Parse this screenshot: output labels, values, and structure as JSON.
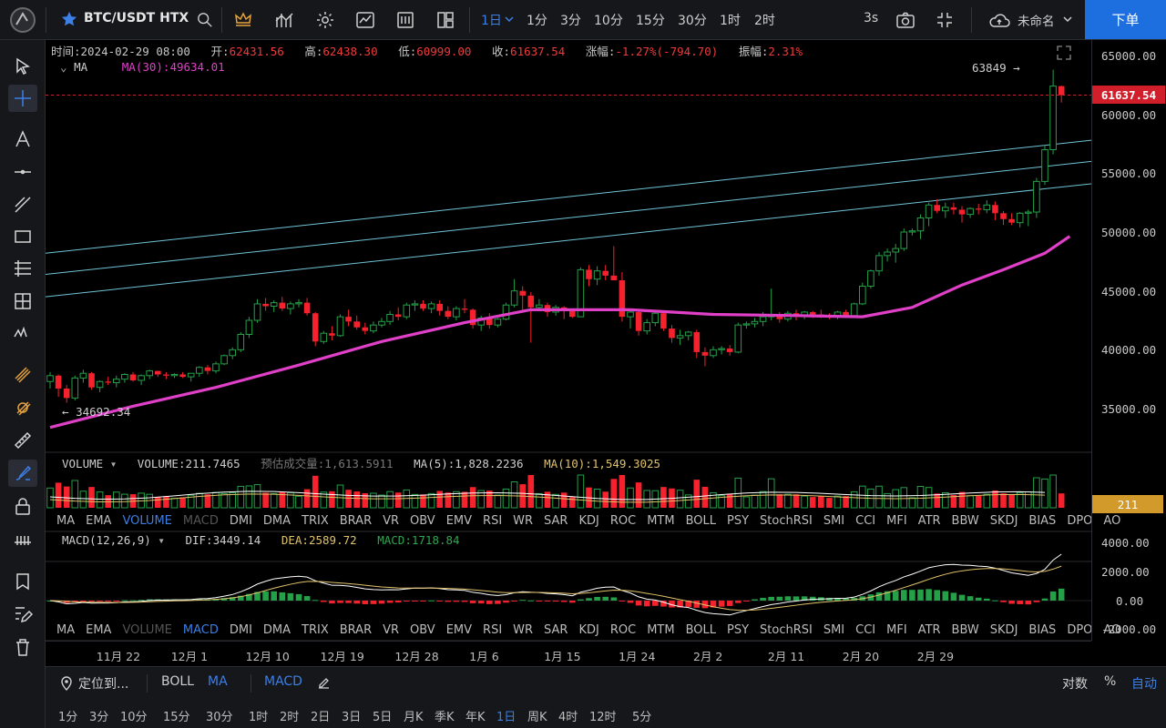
{
  "header": {
    "symbol": "BTC/USDT HTX",
    "timeframes": [
      "1日",
      "1分",
      "3分",
      "10分",
      "15分",
      "30分",
      "1时",
      "2时"
    ],
    "active_timeframe": "1日",
    "refresh": "3s",
    "layout_name": "未命名",
    "order_button": "下单"
  },
  "ohlc": {
    "time_label": "时间:",
    "time": "2024-02-29 08:00",
    "open_label": "开:",
    "open": "62431.56",
    "high_label": "高:",
    "high": "62438.30",
    "low_label": "低:",
    "low": "60999.00",
    "close_label": "收:",
    "close": "61637.54",
    "change_label": "涨幅:",
    "change": "-1.27%(-794.70)",
    "amp_label": "振幅:",
    "amp": "2.31%"
  },
  "ma_legend": {
    "name": "MA",
    "value": "MA(30):49634.01"
  },
  "annotations": {
    "high_mark": "63849",
    "low_mark": "34692.34"
  },
  "price_axis": {
    "labels": [
      "65000.00",
      "60000.00",
      "55000.00",
      "50000.00",
      "45000.00",
      "40000.00",
      "35000.00"
    ],
    "current": "61637.54",
    "volume_tag": "211",
    "macd_labels": [
      "4000.00",
      "2000.00",
      "0.00",
      "-2000.00"
    ]
  },
  "volume_legend": {
    "name": "VOLUME",
    "vol": "VOLUME:211.7465",
    "est_label": "预估成交量:",
    "est": "1,613.5911",
    "ma5": "MA(5):1,828.2236",
    "ma10": "MA(10):1,549.3025"
  },
  "indicator_tabs": [
    "MA",
    "EMA",
    "VOLUME",
    "MACD",
    "DMI",
    "DMA",
    "TRIX",
    "BRAR",
    "VR",
    "OBV",
    "EMV",
    "RSI",
    "WR",
    "SAR",
    "KDJ",
    "ROC",
    "MTM",
    "BOLL",
    "PSY",
    "StochRSI",
    "SMI",
    "CCI",
    "MFI",
    "ATR",
    "BBW",
    "SKDJ",
    "BIAS",
    "DPO",
    "AO"
  ],
  "macd_legend": {
    "name": "MACD(12,26,9)",
    "dif": "DIF:3449.14",
    "dea": "DEA:2589.72",
    "macd": "MACD:1718.84"
  },
  "date_axis": [
    "11月 22",
    "12月 1",
    "12月 10",
    "12月 19",
    "12月 28",
    "1月 6",
    "1月 15",
    "1月 24",
    "2月 2",
    "2月 11",
    "2月 20",
    "2月 29"
  ],
  "bottom": {
    "locate": "定位到...",
    "boll": "BOLL",
    "ma": "MA",
    "macd": "MACD",
    "log": "对数",
    "pct": "%",
    "auto": "自动",
    "periods": [
      "1分",
      "3分",
      "10分",
      "15分",
      "30分",
      "1时",
      "2时",
      "2日",
      "3日",
      "5日",
      "月K",
      "季K",
      "年K",
      "1日",
      "周K",
      "4时",
      "12时",
      "5分"
    ],
    "active_period": "1日"
  },
  "colors": {
    "up": "#24a148",
    "down": "#f5222d",
    "ma": "#e040c8",
    "accent": "#3c7fe6",
    "order": "#1d6fe0"
  },
  "chart_data": {
    "type": "candlestick",
    "title": "BTC/USDT HTX",
    "price_ylim": [
      33000,
      66000
    ],
    "candles_ohlc": [
      [
        37300,
        38100,
        36700,
        37800
      ],
      [
        37800,
        37900,
        36000,
        36700
      ],
      [
        36700,
        37000,
        35500,
        35900
      ],
      [
        35900,
        37800,
        35700,
        37600
      ],
      [
        37600,
        38300,
        37200,
        38000
      ],
      [
        38000,
        38100,
        36600,
        36800
      ],
      [
        36800,
        37400,
        36400,
        37300
      ],
      [
        37300,
        37700,
        37000,
        37200
      ],
      [
        37200,
        37800,
        36800,
        37500
      ],
      [
        37500,
        38000,
        37200,
        37900
      ],
      [
        37900,
        38100,
        37300,
        37400
      ],
      [
        37400,
        37900,
        37000,
        37800
      ],
      [
        37800,
        38300,
        37500,
        38200
      ],
      [
        38200,
        38200,
        37700,
        37900
      ],
      [
        37900,
        38100,
        37500,
        37800
      ],
      [
        37800,
        38000,
        37600,
        37900
      ],
      [
        37900,
        38100,
        37600,
        37700
      ],
      [
        37700,
        38000,
        37300,
        38000
      ],
      [
        38000,
        38600,
        37700,
        38500
      ],
      [
        38500,
        38700,
        37900,
        38200
      ],
      [
        38200,
        39000,
        38000,
        38800
      ],
      [
        38800,
        39600,
        38700,
        39500
      ],
      [
        39500,
        40200,
        39200,
        40000
      ],
      [
        40000,
        41500,
        39800,
        41300
      ],
      [
        41300,
        42800,
        41000,
        42500
      ],
      [
        42500,
        44300,
        42300,
        43900
      ],
      [
        43900,
        44400,
        43300,
        43700
      ],
      [
        43700,
        44200,
        43200,
        44000
      ],
      [
        44000,
        44500,
        43300,
        43500
      ],
      [
        43500,
        44100,
        43000,
        43900
      ],
      [
        43900,
        44300,
        43600,
        44000
      ],
      [
        44000,
        44400,
        42900,
        43100
      ],
      [
        43100,
        43200,
        40300,
        40700
      ],
      [
        40700,
        41600,
        40500,
        41400
      ],
      [
        41400,
        42000,
        40800,
        41200
      ],
      [
        41200,
        43000,
        41100,
        42800
      ],
      [
        42800,
        43400,
        42000,
        42400
      ],
      [
        42400,
        42900,
        41700,
        41900
      ],
      [
        41900,
        42300,
        41300,
        41600
      ],
      [
        41600,
        42400,
        41400,
        42100
      ],
      [
        42100,
        42700,
        41900,
        42400
      ],
      [
        42400,
        43300,
        42100,
        43000
      ],
      [
        43000,
        43600,
        42500,
        42800
      ],
      [
        42800,
        44000,
        42600,
        43800
      ],
      [
        43800,
        44200,
        43300,
        43900
      ],
      [
        43900,
        44200,
        43300,
        43500
      ],
      [
        43500,
        44100,
        43100,
        43900
      ],
      [
        43900,
        44200,
        42900,
        43300
      ],
      [
        43300,
        43700,
        42600,
        42800
      ],
      [
        42800,
        43700,
        42500,
        43500
      ],
      [
        43500,
        44300,
        43100,
        43400
      ],
      [
        43400,
        43500,
        41800,
        42100
      ],
      [
        42100,
        42900,
        41600,
        42700
      ],
      [
        42700,
        43100,
        41800,
        42100
      ],
      [
        42100,
        42700,
        41900,
        42600
      ],
      [
        42600,
        44000,
        42500,
        43800
      ],
      [
        43800,
        46000,
        43600,
        45000
      ],
      [
        45000,
        45400,
        43300,
        44600
      ],
      [
        44600,
        44900,
        40600,
        43600
      ],
      [
        43600,
        44300,
        43300,
        43800
      ],
      [
        43800,
        44000,
        42800,
        43200
      ],
      [
        43200,
        43800,
        42900,
        43600
      ],
      [
        43600,
        43700,
        42600,
        43300
      ],
      [
        43300,
        43300,
        42700,
        42800
      ],
      [
        42800,
        47000,
        42800,
        46800
      ],
      [
        46800,
        47200,
        45400,
        46000
      ],
      [
        46000,
        47100,
        45500,
        46700
      ],
      [
        46700,
        47200,
        45900,
        46300
      ],
      [
        46300,
        48800,
        45900,
        45900
      ],
      [
        45900,
        46600,
        42400,
        42800
      ],
      [
        42800,
        43400,
        41800,
        43200
      ],
      [
        43200,
        43400,
        41200,
        41600
      ],
      [
        41600,
        42600,
        41300,
        42300
      ],
      [
        42300,
        43300,
        42000,
        43100
      ],
      [
        43100,
        43300,
        41600,
        41800
      ],
      [
        41800,
        42100,
        40600,
        41000
      ],
      [
        41000,
        41700,
        40400,
        41200
      ],
      [
        41200,
        41600,
        40800,
        41500
      ],
      [
        41500,
        41700,
        39300,
        39800
      ],
      [
        39800,
        40200,
        38600,
        39500
      ],
      [
        39500,
        40300,
        39300,
        40000
      ],
      [
        40000,
        40300,
        39600,
        40100
      ],
      [
        40100,
        40400,
        39500,
        39800
      ],
      [
        39800,
        42300,
        39700,
        42100
      ],
      [
        42100,
        42400,
        41800,
        42200
      ],
      [
        42200,
        42700,
        41900,
        42400
      ],
      [
        42400,
        43200,
        42000,
        42800
      ],
      [
        42800,
        45200,
        42500,
        43000
      ],
      [
        43000,
        43200,
        42300,
        42600
      ],
      [
        42600,
        43300,
        42400,
        43100
      ],
      [
        43100,
        43400,
        42500,
        42900
      ],
      [
        42900,
        43300,
        42600,
        43200
      ],
      [
        43200,
        43300,
        42700,
        43000
      ],
      [
        43000,
        43400,
        42700,
        42900
      ],
      [
        42900,
        43100,
        42600,
        42800
      ],
      [
        42800,
        43300,
        42600,
        43200
      ],
      [
        43200,
        43400,
        42700,
        42900
      ],
      [
        42900,
        44000,
        42800,
        43900
      ],
      [
        43900,
        45700,
        43800,
        45400
      ],
      [
        45400,
        46800,
        45200,
        46700
      ],
      [
        46700,
        48300,
        46300,
        48000
      ],
      [
        48000,
        48600,
        47500,
        48300
      ],
      [
        48300,
        49000,
        47400,
        48600
      ],
      [
        48600,
        50300,
        48400,
        50000
      ],
      [
        50000,
        50300,
        49700,
        50100
      ],
      [
        50100,
        51500,
        49400,
        51200
      ],
      [
        51200,
        52500,
        50500,
        52300
      ],
      [
        52300,
        52800,
        51600,
        51800
      ],
      [
        51800,
        52500,
        51200,
        52100
      ],
      [
        52100,
        52500,
        51500,
        51900
      ],
      [
        51900,
        52200,
        50800,
        51500
      ],
      [
        51500,
        52100,
        51200,
        52000
      ],
      [
        52000,
        52400,
        51500,
        51900
      ],
      [
        51900,
        52700,
        51600,
        52300
      ],
      [
        52300,
        52600,
        51000,
        51600
      ],
      [
        51600,
        51800,
        50600,
        51100
      ],
      [
        51100,
        51600,
        50600,
        50800
      ],
      [
        50800,
        51700,
        50400,
        51600
      ],
      [
        51600,
        51900,
        50500,
        51700
      ],
      [
        51700,
        54600,
        51200,
        54300
      ],
      [
        54300,
        57400,
        54000,
        57000
      ],
      [
        57000,
        63800,
        56600,
        62400
      ],
      [
        62400,
        62440,
        61000,
        61640
      ]
    ],
    "ma30_line": [
      [
        0,
        33400
      ],
      [
        10,
        35200
      ],
      [
        20,
        36800
      ],
      [
        30,
        38700
      ],
      [
        40,
        40700
      ],
      [
        50,
        42300
      ],
      [
        58,
        43400
      ],
      [
        70,
        43400
      ],
      [
        80,
        43000
      ],
      [
        90,
        42900
      ],
      [
        98,
        42800
      ],
      [
        104,
        43600
      ],
      [
        110,
        45500
      ],
      [
        115,
        46800
      ],
      [
        120,
        48200
      ],
      [
        123,
        49634
      ]
    ],
    "volume_ma5": 1828.2236,
    "volume_ma10": 1549.3025,
    "macd": {
      "dif": 3449.14,
      "dea": 2589.72,
      "macd": 1718.84,
      "ylim": [
        -2500,
        4500
      ]
    },
    "trend_channel": [
      {
        "start_price": 48200,
        "end_price": 57800
      },
      {
        "start_price": 46400,
        "end_price": 56000
      },
      {
        "start_price": 44500,
        "end_price": 54100
      }
    ]
  }
}
